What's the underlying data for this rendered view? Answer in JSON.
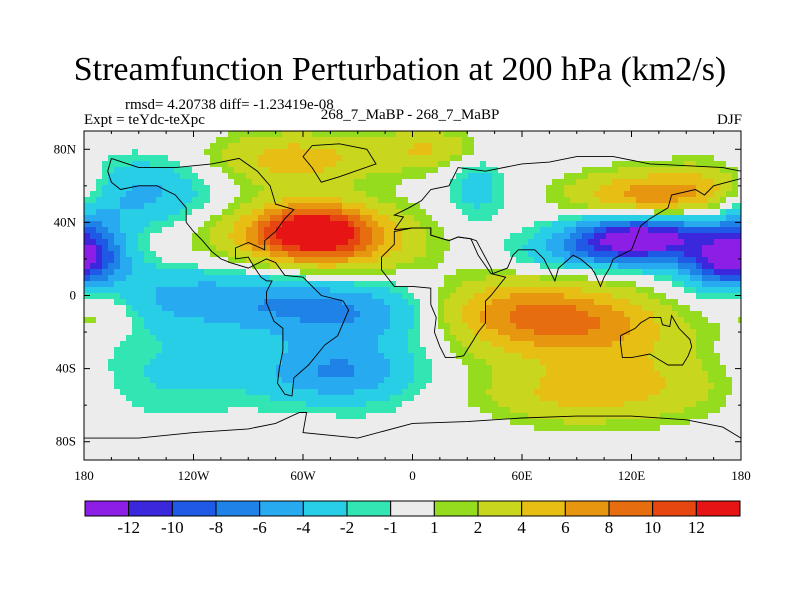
{
  "chart_data": {
    "type": "heatmap",
    "title": "Streamfunction Perturbation at 200 hPa (km2/s)",
    "subtitle": "rmsd= 4.20738 diff= -1.23419e-08",
    "left_label": "Expt = teYdc-teXpc",
    "center_label": "268_7_MaBP - 268_7_MaBP",
    "right_label": "DJF",
    "x_ticks": [
      {
        "value": -180,
        "label": "180"
      },
      {
        "value": -120,
        "label": "120W"
      },
      {
        "value": -60,
        "label": "60W"
      },
      {
        "value": 0,
        "label": "0"
      },
      {
        "value": 60,
        "label": "60E"
      },
      {
        "value": 120,
        "label": "120E"
      },
      {
        "value": 180,
        "label": "180"
      }
    ],
    "y_ticks": [
      {
        "value": 80,
        "label": "80N"
      },
      {
        "value": 40,
        "label": "40N"
      },
      {
        "value": 0,
        "label": "0"
      },
      {
        "value": -40,
        "label": "40S"
      },
      {
        "value": -80,
        "label": "80S"
      }
    ],
    "xlim": [
      -180,
      180
    ],
    "ylim": [
      -90,
      90
    ],
    "colorbar_labels": [
      "-12",
      "-10",
      "-8",
      "-6",
      "-4",
      "-2",
      "-1",
      "1",
      "2",
      "4",
      "6",
      "8",
      "10",
      "12"
    ],
    "colorbar_colors": [
      "#8c1ee6",
      "#3c28dc",
      "#1e5ae6",
      "#1e82e6",
      "#28aaf0",
      "#28cde6",
      "#32e6b4",
      "#ececec",
      "#96dc1e",
      "#c8d71e",
      "#e6be14",
      "#e6960f",
      "#e66e0f",
      "#e6460f",
      "#e61414"
    ],
    "colorbar_levels": [
      -12,
      -10,
      -8,
      -6,
      -4,
      -2,
      -1,
      1,
      2,
      4,
      6,
      8,
      10,
      12
    ],
    "field_centers": [
      {
        "lon": -55,
        "lat": 35,
        "value": 12,
        "slon": 22,
        "slat": 10
      },
      {
        "lon": -70,
        "lat": 28,
        "value": 4,
        "slon": 45,
        "slat": 18
      },
      {
        "lon": -30,
        "lat": 25,
        "value": 3,
        "slon": 30,
        "slat": 14
      },
      {
        "lon": -65,
        "lat": 75,
        "value": 5,
        "slon": 32,
        "slat": 10
      },
      {
        "lon": 10,
        "lat": 80,
        "value": 4,
        "slon": 22,
        "slat": 8
      },
      {
        "lon": 130,
        "lat": 55,
        "value": 7,
        "slon": 30,
        "slat": 9
      },
      {
        "lon": 165,
        "lat": 62,
        "value": 3,
        "slon": 20,
        "slat": 10
      },
      {
        "lon": 125,
        "lat": 32,
        "value": -14,
        "slon": 28,
        "slat": 8
      },
      {
        "lon": 172,
        "lat": 18,
        "value": -9,
        "slon": 18,
        "slat": 9
      },
      {
        "lon": 100,
        "lat": 22,
        "value": -4,
        "slon": 30,
        "slat": 7
      },
      {
        "lon": -150,
        "lat": 55,
        "value": -5,
        "slon": 30,
        "slat": 14
      },
      {
        "lon": -178,
        "lat": 28,
        "value": -6,
        "slon": 14,
        "slat": 12
      },
      {
        "lon": 35,
        "lat": 60,
        "value": -3,
        "slon": 12,
        "slat": 15
      },
      {
        "lon": -90,
        "lat": 0,
        "value": -6,
        "slon": 70,
        "slat": 14
      },
      {
        "lon": -25,
        "lat": -12,
        "value": -4,
        "slon": 40,
        "slat": 12
      },
      {
        "lon": -40,
        "lat": -42,
        "value": -6,
        "slon": 30,
        "slat": 12
      },
      {
        "lon": -150,
        "lat": -45,
        "value": -3,
        "slon": 45,
        "slat": 16
      },
      {
        "lon": 85,
        "lat": -15,
        "value": 8,
        "slon": 45,
        "slat": 14
      },
      {
        "lon": 40,
        "lat": -5,
        "value": 4,
        "slon": 35,
        "slat": 12
      },
      {
        "lon": 140,
        "lat": -48,
        "value": 4,
        "slon": 45,
        "slat": 14
      },
      {
        "lon": 80,
        "lat": -55,
        "value": 3,
        "slon": 35,
        "slat": 12
      },
      {
        "lon": -170,
        "lat": -8,
        "value": 3,
        "slon": 15,
        "slat": 10
      },
      {
        "lon": 10,
        "lat": -75,
        "value": -1,
        "slon": 30,
        "slat": 8
      }
    ],
    "continent_outlines": [
      [
        [
          -165,
          75
        ],
        [
          -150,
          70
        ],
        [
          -130,
          70
        ],
        [
          -110,
          72
        ],
        [
          -95,
          75
        ],
        [
          -85,
          68
        ],
        [
          -78,
          60
        ],
        [
          -75,
          50
        ],
        [
          -65,
          47
        ],
        [
          -70,
          42
        ],
        [
          -75,
          35
        ],
        [
          -81,
          30
        ],
        [
          -81,
          25
        ],
        [
          -90,
          29
        ],
        [
          -97,
          26
        ],
        [
          -97,
          20
        ],
        [
          -90,
          21
        ],
        [
          -87,
          16
        ],
        [
          -83,
          10
        ],
        [
          -80,
          8
        ],
        [
          -77,
          8
        ],
        [
          -80,
          2
        ],
        [
          -80,
          -4
        ],
        [
          -76,
          -14
        ],
        [
          -71,
          -18
        ],
        [
          -71,
          -30
        ],
        [
          -73,
          -40
        ],
        [
          -74,
          -48
        ],
        [
          -70,
          -54
        ],
        [
          -66,
          -55
        ],
        [
          -65,
          -45
        ],
        [
          -57,
          -38
        ],
        [
          -48,
          -27
        ],
        [
          -41,
          -22
        ],
        [
          -35,
          -8
        ],
        [
          -38,
          -3
        ],
        [
          -50,
          0
        ],
        [
          -60,
          10
        ],
        [
          -70,
          11
        ],
        [
          -75,
          18
        ],
        [
          -80,
          20
        ],
        [
          -90,
          15
        ],
        [
          -100,
          18
        ],
        [
          -105,
          20
        ],
        [
          -110,
          24
        ],
        [
          -115,
          30
        ],
        [
          -120,
          35
        ],
        [
          -124,
          40
        ],
        [
          -124,
          48
        ],
        [
          -130,
          55
        ],
        [
          -140,
          60
        ],
        [
          -150,
          60
        ],
        [
          -160,
          58
        ],
        [
          -165,
          62
        ],
        [
          -167,
          68
        ],
        [
          -165,
          75
        ]
      ],
      [
        [
          -55,
          82
        ],
        [
          -40,
          83
        ],
        [
          -25,
          80
        ],
        [
          -20,
          72
        ],
        [
          -40,
          65
        ],
        [
          -50,
          62
        ],
        [
          -55,
          70
        ],
        [
          -60,
          76
        ],
        [
          -55,
          82
        ]
      ],
      [
        [
          -10,
          36
        ],
        [
          -5,
          43
        ],
        [
          -10,
          44
        ],
        [
          -2,
          48
        ],
        [
          5,
          52
        ],
        [
          10,
          58
        ],
        [
          20,
          60
        ],
        [
          25,
          70
        ],
        [
          40,
          68
        ],
        [
          60,
          72
        ],
        [
          75,
          73
        ],
        [
          90,
          76
        ],
        [
          110,
          76
        ],
        [
          130,
          72
        ],
        [
          150,
          71
        ],
        [
          170,
          70
        ],
        [
          180,
          68
        ],
        [
          180,
          64
        ],
        [
          165,
          60
        ],
        [
          160,
          55
        ],
        [
          155,
          58
        ],
        [
          142,
          55
        ],
        [
          140,
          48
        ],
        [
          130,
          42
        ],
        [
          125,
          38
        ],
        [
          122,
          30
        ],
        [
          120,
          25
        ],
        [
          110,
          20
        ],
        [
          108,
          15
        ],
        [
          105,
          10
        ],
        [
          103,
          5
        ],
        [
          100,
          12
        ],
        [
          98,
          15
        ],
        [
          92,
          20
        ],
        [
          88,
          22
        ],
        [
          80,
          15
        ],
        [
          78,
          8
        ],
        [
          72,
          20
        ],
        [
          67,
          25
        ],
        [
          58,
          25
        ],
        [
          55,
          22
        ],
        [
          52,
          15
        ],
        [
          44,
          12
        ],
        [
          43,
          15
        ],
        [
          35,
          30
        ],
        [
          32,
          31
        ],
        [
          25,
          32
        ],
        [
          20,
          30
        ],
        [
          10,
          33
        ],
        [
          10,
          37
        ],
        [
          0,
          37
        ],
        [
          -10,
          36
        ]
      ],
      [
        [
          -17,
          21
        ],
        [
          -17,
          14
        ],
        [
          -10,
          5
        ],
        [
          0,
          5
        ],
        [
          10,
          4
        ],
        [
          10,
          -5
        ],
        [
          13,
          -12
        ],
        [
          12,
          -20
        ],
        [
          15,
          -28
        ],
        [
          18,
          -34
        ],
        [
          22,
          -34
        ],
        [
          28,
          -33
        ],
        [
          33,
          -25
        ],
        [
          36,
          -20
        ],
        [
          40,
          -15
        ],
        [
          40,
          -10
        ],
        [
          40,
          -3
        ],
        [
          43,
          0
        ],
        [
          51,
          10
        ],
        [
          43,
          12
        ],
        [
          36,
          22
        ],
        [
          32,
          31
        ],
        [
          25,
          32
        ],
        [
          20,
          30
        ],
        [
          10,
          33
        ],
        [
          10,
          37
        ],
        [
          0,
          37
        ],
        [
          -10,
          35
        ],
        [
          -10,
          28
        ],
        [
          -17,
          21
        ]
      ],
      [
        [
          114,
          -22
        ],
        [
          114,
          -26
        ],
        [
          115,
          -34
        ],
        [
          120,
          -34
        ],
        [
          130,
          -32
        ],
        [
          135,
          -35
        ],
        [
          140,
          -38
        ],
        [
          148,
          -38
        ],
        [
          151,
          -33
        ],
        [
          153,
          -28
        ],
        [
          152,
          -24
        ],
        [
          146,
          -18
        ],
        [
          142,
          -11
        ],
        [
          141,
          -17
        ],
        [
          137,
          -16
        ],
        [
          136,
          -12
        ],
        [
          130,
          -12
        ],
        [
          125,
          -15
        ],
        [
          122,
          -18
        ],
        [
          114,
          -22
        ]
      ],
      [
        [
          -180,
          -78
        ],
        [
          -150,
          -78
        ],
        [
          -120,
          -75
        ],
        [
          -90,
          -73
        ],
        [
          -75,
          -70
        ],
        [
          -62,
          -64
        ],
        [
          -58,
          -64
        ],
        [
          -60,
          -75
        ],
        [
          -30,
          -78
        ],
        [
          0,
          -70
        ],
        [
          30,
          -69
        ],
        [
          60,
          -67
        ],
        [
          90,
          -66
        ],
        [
          120,
          -66
        ],
        [
          150,
          -68
        ],
        [
          170,
          -72
        ],
        [
          180,
          -78
        ]
      ]
    ]
  }
}
